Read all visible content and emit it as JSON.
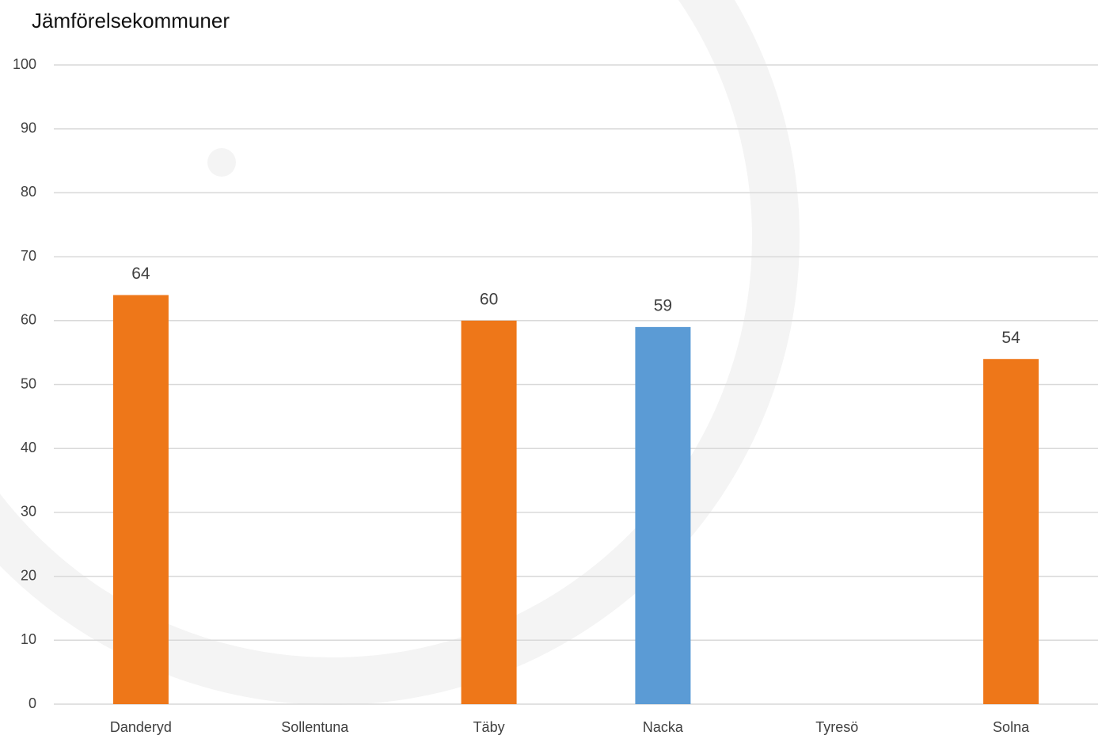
{
  "chart_data": {
    "type": "bar",
    "title": "Jämförelsekommuner",
    "categories": [
      "Danderyd",
      "Sollentuna",
      "Täby",
      "Nacka",
      "Tyresö",
      "Solna"
    ],
    "values": [
      64,
      null,
      60,
      59,
      null,
      54
    ],
    "colors": [
      "#ee7719",
      "#ee7719",
      "#ee7719",
      "#5b9bd5",
      "#ee7719",
      "#ee7719"
    ],
    "ylim": [
      0,
      100
    ],
    "yticks": [
      0,
      10,
      20,
      30,
      40,
      50,
      60,
      70,
      80,
      90,
      100
    ],
    "grid": true
  }
}
